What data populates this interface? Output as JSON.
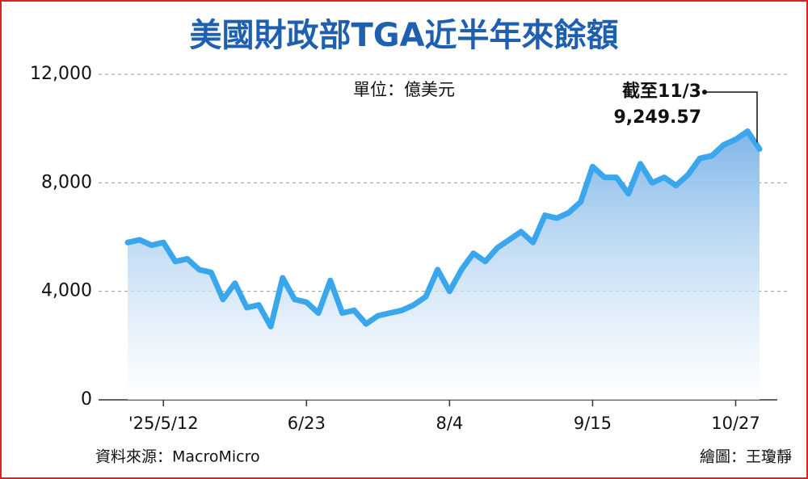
{
  "chart_data": {
    "type": "line",
    "title": "美國財政部TGA近半年來餘額",
    "subtitle": "單位：億美元",
    "source": "資料來源：MacroMicro",
    "credit": "繪圖：王瓊靜",
    "annotation": "截至11/3",
    "categories": [
      null,
      null,
      null,
      "'25/5/12",
      null,
      null,
      null,
      null,
      null,
      null,
      null,
      null,
      null,
      null,
      null,
      "6/23",
      null,
      null,
      null,
      null,
      null,
      null,
      null,
      null,
      null,
      null,
      null,
      "8/4",
      null,
      null,
      null,
      null,
      null,
      null,
      null,
      null,
      null,
      null,
      null,
      "9/15",
      null,
      null,
      null,
      null,
      null,
      null,
      null,
      null,
      null,
      null,
      null,
      "10/27",
      null,
      null
    ],
    "series": [
      {
        "name": "TGA",
        "color": "#3aa6ec",
        "values": [
          5800,
          5900,
          5700,
          5800,
          5100,
          5200,
          4800,
          4700,
          3700,
          4300,
          3400,
          3500,
          2700,
          4500,
          3700,
          3600,
          3200,
          4400,
          3200,
          3300,
          2800,
          3100,
          3200,
          3300,
          3500,
          3800,
          4800,
          4000,
          4800,
          5400,
          5100,
          5600,
          5900,
          6200,
          5800,
          6800,
          6700,
          6900,
          7300,
          8600,
          8200,
          8200,
          7600,
          8700,
          8000,
          8200,
          7900,
          8300,
          8900,
          9000,
          9400,
          9600,
          9900,
          9249.57
        ],
        "value_labels": [
          null,
          null,
          null,
          null,
          null,
          null,
          null,
          null,
          null,
          null,
          null,
          null,
          null,
          null,
          null,
          null,
          null,
          null,
          null,
          null,
          null,
          null,
          null,
          null,
          null,
          null,
          null,
          null,
          null,
          null,
          null,
          null,
          null,
          null,
          null,
          null,
          null,
          null,
          null,
          null,
          null,
          null,
          null,
          null,
          null,
          null,
          null,
          null,
          null,
          null,
          null,
          null,
          null,
          "9,249.57"
        ]
      }
    ],
    "ylim": [
      0,
      12000
    ],
    "yticks": [
      0,
      {
        "value": 4000,
        "label": "4,000"
      },
      {
        "value": 8000,
        "label": "8,000"
      },
      {
        "value": 12000,
        "label": "12,000"
      }
    ],
    "grid": true
  }
}
